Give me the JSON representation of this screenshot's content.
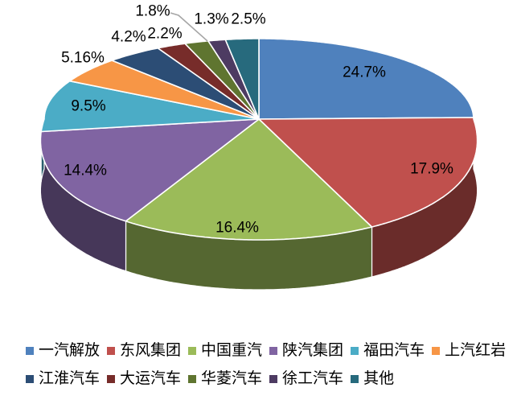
{
  "chart_data": {
    "type": "pie",
    "style": "3d",
    "title": "",
    "unit": "%",
    "categories": [
      "一汽解放",
      "东风集团",
      "中国重汽",
      "陕汽集团",
      "福田汽车",
      "上汽红岩",
      "江淮汽车",
      "大运汽车",
      "华菱汽车",
      "徐工汽车",
      "其他"
    ],
    "values": [
      24.7,
      17.9,
      16.4,
      14.4,
      9.5,
      5.16,
      4.2,
      2.2,
      1.8,
      1.3,
      2.5
    ],
    "labels": [
      "24.7%",
      "17.9%",
      "16.4%",
      "14.4%",
      "9.5%",
      "5.16%",
      "4.2%",
      "2.2%",
      "1.8%",
      "1.3%",
      "2.5%"
    ],
    "colors": [
      "#4F81BD",
      "#C0504D",
      "#9BBB59",
      "#8064A2",
      "#4BACC6",
      "#F79646",
      "#2C4D75",
      "#772C2A",
      "#5F7530",
      "#4D3B62",
      "#276A7D"
    ],
    "start_angle_deg": 0,
    "direction": "clockwise",
    "grid": "off",
    "legend_position": "bottom",
    "legend_row_break": 6,
    "leader_line": {
      "for_label": "1.8%",
      "color": "#A6A6A6"
    }
  },
  "background_color": "#FFFFFF",
  "label_text_color": "#000000",
  "slice_border_color": "#FFFFFF"
}
